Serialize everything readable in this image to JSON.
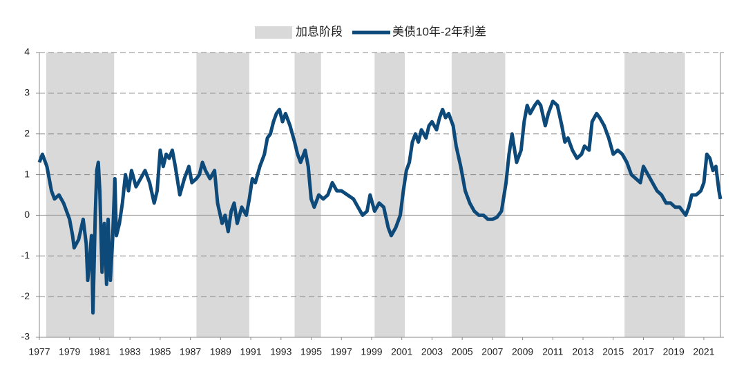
{
  "chart_data": {
    "type": "line",
    "xlim": [
      1977,
      2022.1
    ],
    "xticks": [
      1977,
      1979,
      1981,
      1983,
      1985,
      1987,
      1989,
      1991,
      1993,
      1995,
      1997,
      1999,
      2001,
      2003,
      2005,
      2007,
      2009,
      2011,
      2013,
      2015,
      2017,
      2019,
      2021
    ],
    "ylim": [
      -3,
      4
    ],
    "yticks": [
      -3,
      -2,
      -1,
      0,
      1,
      2,
      3,
      4
    ],
    "grid": true,
    "legend": "top",
    "x": [
      1977.0,
      1977.2,
      1977.5,
      1977.8,
      1978.0,
      1978.3,
      1978.6,
      1979.0,
      1979.2,
      1979.3,
      1979.6,
      1979.9,
      1980.1,
      1980.2,
      1980.35,
      1980.45,
      1980.55,
      1980.7,
      1980.8,
      1980.9,
      1981.0,
      1981.15,
      1981.3,
      1981.45,
      1981.55,
      1981.7,
      1981.85,
      1982.0,
      1982.1,
      1982.3,
      1982.5,
      1982.7,
      1982.9,
      1983.1,
      1983.4,
      1983.7,
      1984.0,
      1984.3,
      1984.6,
      1984.8,
      1985.0,
      1985.2,
      1985.4,
      1985.6,
      1985.8,
      1986.0,
      1986.3,
      1986.6,
      1986.9,
      1987.1,
      1987.4,
      1987.6,
      1987.8,
      1988.0,
      1988.3,
      1988.6,
      1988.8,
      1989.1,
      1989.3,
      1989.5,
      1989.7,
      1989.9,
      1990.1,
      1990.4,
      1990.7,
      1990.9,
      1991.1,
      1991.3,
      1991.6,
      1991.9,
      1992.1,
      1992.3,
      1992.5,
      1992.7,
      1992.9,
      1993.1,
      1993.3,
      1993.6,
      1993.9,
      1994.1,
      1994.3,
      1994.6,
      1994.8,
      1995.0,
      1995.2,
      1995.5,
      1995.8,
      1996.1,
      1996.4,
      1996.7,
      1997.0,
      1997.4,
      1997.8,
      1998.1,
      1998.4,
      1998.7,
      1998.9,
      1999.2,
      1999.5,
      1999.8,
      2000.1,
      2000.3,
      2000.6,
      2000.9,
      2001.1,
      2001.3,
      2001.5,
      2001.7,
      2001.9,
      2002.1,
      2002.3,
      2002.6,
      2002.8,
      2003.0,
      2003.3,
      2003.5,
      2003.7,
      2003.9,
      2004.1,
      2004.4,
      2004.6,
      2004.9,
      2005.2,
      2005.5,
      2005.8,
      2006.1,
      2006.4,
      2006.7,
      2007.0,
      2007.3,
      2007.6,
      2007.9,
      2008.1,
      2008.3,
      2008.6,
      2008.9,
      2009.1,
      2009.3,
      2009.5,
      2009.8,
      2010.0,
      2010.2,
      2010.5,
      2010.7,
      2011.0,
      2011.3,
      2011.6,
      2011.8,
      2012.0,
      2012.3,
      2012.6,
      2012.9,
      2013.1,
      2013.4,
      2013.6,
      2013.9,
      2014.1,
      2014.4,
      2014.7,
      2015.0,
      2015.3,
      2015.6,
      2015.9,
      2016.2,
      2016.5,
      2016.8,
      2017.0,
      2017.3,
      2017.6,
      2017.9,
      2018.2,
      2018.5,
      2018.8,
      2019.1,
      2019.4,
      2019.6,
      2019.8,
      2020.0,
      2020.2,
      2020.5,
      2020.8,
      2021.0,
      2021.2,
      2021.4,
      2021.6,
      2021.8,
      2022.0,
      2022.1
    ],
    "series": [
      {
        "name": "加息阶段",
        "color": "#d9d9d9",
        "ranges": [
          [
            1977.45,
            1981.95
          ],
          [
            1987.4,
            1990.9
          ],
          [
            1993.9,
            1995.65
          ],
          [
            1999.2,
            2001.2
          ],
          [
            2004.3,
            2007.85
          ],
          [
            2015.75,
            2019.75
          ]
        ]
      },
      {
        "name": "美债10年-2年利差",
        "color": "#0d4a7a",
        "values": [
          1.3,
          1.5,
          1.2,
          0.6,
          0.4,
          0.5,
          0.3,
          -0.1,
          -0.5,
          -0.8,
          -0.6,
          -0.1,
          -0.7,
          -1.6,
          -1.0,
          -0.5,
          -2.4,
          0.0,
          1.1,
          1.3,
          0.6,
          -1.4,
          -0.2,
          -1.7,
          -0.1,
          -1.6,
          -0.6,
          0.9,
          -0.5,
          -0.2,
          0.3,
          1.0,
          0.6,
          1.1,
          0.7,
          0.9,
          1.1,
          0.8,
          0.3,
          0.6,
          1.6,
          1.2,
          1.5,
          1.4,
          1.6,
          1.2,
          0.5,
          0.9,
          1.2,
          0.8,
          0.9,
          1.0,
          1.3,
          1.1,
          0.9,
          1.1,
          0.3,
          -0.2,
          0.0,
          -0.4,
          0.1,
          0.3,
          -0.2,
          0.2,
          0.0,
          0.4,
          0.9,
          0.8,
          1.2,
          1.5,
          1.9,
          2.0,
          2.3,
          2.5,
          2.6,
          2.3,
          2.5,
          2.2,
          1.8,
          1.5,
          1.3,
          1.6,
          1.2,
          0.4,
          0.2,
          0.5,
          0.4,
          0.5,
          0.8,
          0.6,
          0.6,
          0.5,
          0.4,
          0.2,
          0.0,
          0.1,
          0.5,
          0.1,
          0.3,
          0.2,
          -0.3,
          -0.5,
          -0.3,
          0.0,
          0.6,
          1.1,
          1.3,
          1.8,
          2.0,
          1.8,
          2.1,
          1.9,
          2.2,
          2.3,
          2.1,
          2.4,
          2.6,
          2.4,
          2.5,
          2.2,
          1.7,
          1.2,
          0.6,
          0.3,
          0.1,
          0.0,
          0.0,
          -0.1,
          -0.1,
          -0.05,
          0.1,
          0.8,
          1.5,
          2.0,
          1.3,
          1.6,
          2.3,
          2.7,
          2.5,
          2.7,
          2.8,
          2.7,
          2.2,
          2.5,
          2.8,
          2.7,
          2.2,
          1.8,
          1.9,
          1.6,
          1.4,
          1.5,
          1.7,
          1.6,
          2.3,
          2.5,
          2.4,
          2.2,
          1.9,
          1.5,
          1.6,
          1.5,
          1.3,
          1.0,
          0.9,
          0.8,
          1.2,
          1.0,
          0.8,
          0.6,
          0.5,
          0.3,
          0.3,
          0.2,
          0.2,
          0.1,
          0.0,
          0.2,
          0.5,
          0.5,
          0.6,
          0.8,
          1.5,
          1.4,
          1.1,
          1.2,
          0.6,
          0.4
        ]
      }
    ]
  }
}
